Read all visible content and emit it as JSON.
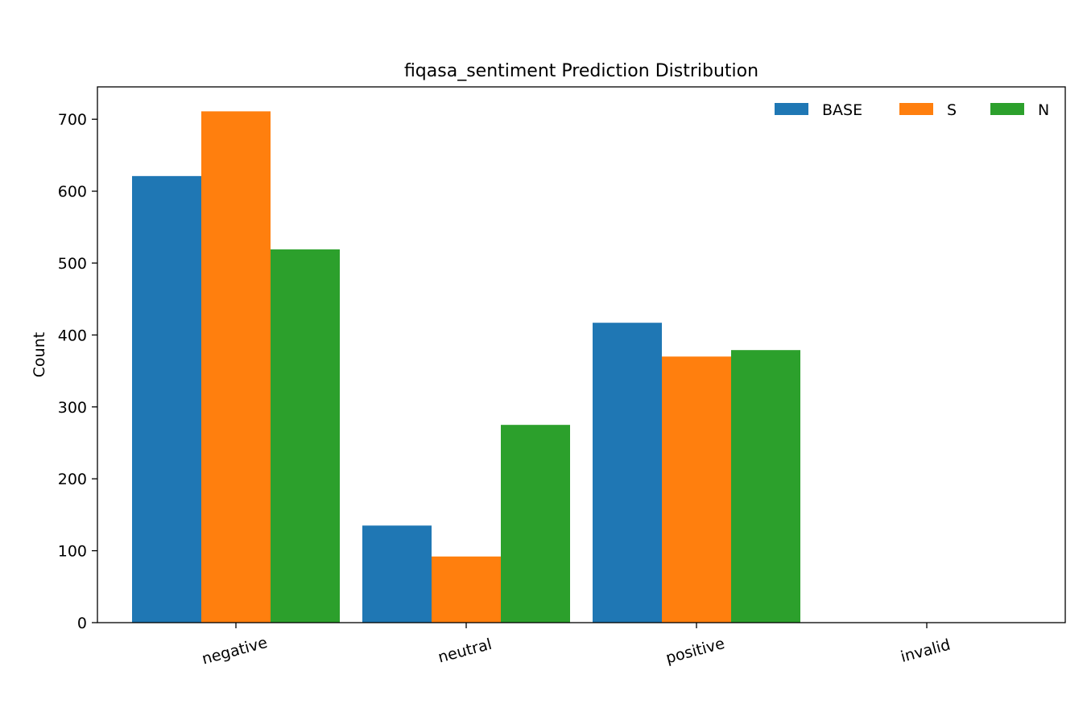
{
  "chart_data": {
    "type": "bar",
    "title": "fiqasa_sentiment Prediction Distribution",
    "xlabel": "",
    "ylabel": "Count",
    "categories": [
      "negative",
      "neutral",
      "positive",
      "invalid"
    ],
    "series": [
      {
        "name": "BASE",
        "color": "#1f77b4",
        "values": [
          621,
          135,
          417,
          0
        ]
      },
      {
        "name": "S",
        "color": "#ff7f0e",
        "values": [
          711,
          92,
          370,
          0
        ]
      },
      {
        "name": "N",
        "color": "#2ca02c",
        "values": [
          519,
          275,
          379,
          0
        ]
      }
    ],
    "ylim": [
      0,
      745
    ],
    "yticks": [
      0,
      100,
      200,
      300,
      400,
      500,
      600,
      700
    ],
    "x_tick_rotation_deg": -15,
    "legend_position": "top-right",
    "grid": false
  }
}
